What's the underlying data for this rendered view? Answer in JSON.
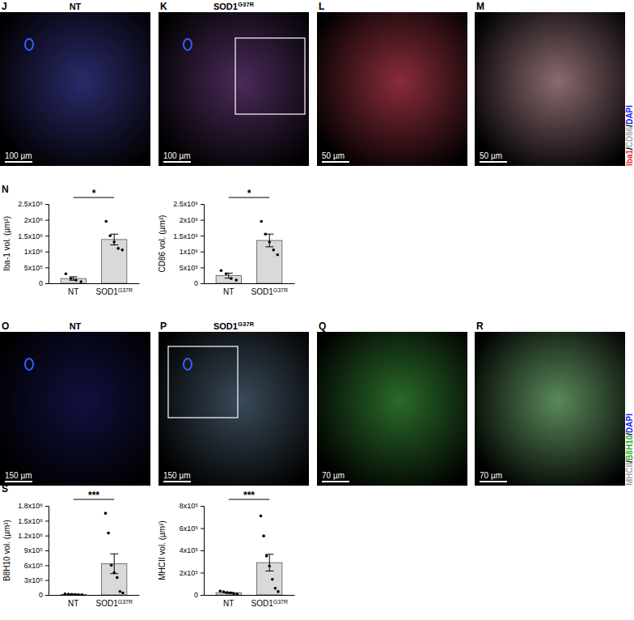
{
  "image_rows": [
    {
      "panels": [
        {
          "letter": "J",
          "title": "NT",
          "scale_bar": "100 µm"
        },
        {
          "letter": "K",
          "title": "SOD1G37R",
          "scale_bar": "100 µm"
        },
        {
          "letter": "L",
          "scale_bar": "50 µm"
        },
        {
          "letter": "M",
          "scale_bar": "50 µm"
        }
      ],
      "channels": [
        {
          "text": "Iba1",
          "color": "#e8302a"
        },
        {
          "text": "/",
          "color": "#000000"
        },
        {
          "text": "CD86",
          "color": "#a6a6a6"
        },
        {
          "text": "/",
          "color": "#000000"
        },
        {
          "text": "DAPI",
          "color": "#1a1aff"
        }
      ]
    },
    {
      "panels": [
        {
          "letter": "O",
          "title": "NT",
          "scale_bar": "150 µm"
        },
        {
          "letter": "P",
          "title": "SOD1G37R",
          "scale_bar": "150 µm"
        },
        {
          "letter": "Q",
          "scale_bar": "70 µm"
        },
        {
          "letter": "R",
          "scale_bar": "70 µm"
        }
      ],
      "channels": [
        {
          "text": "MHCII",
          "color": "#a6a6a6"
        },
        {
          "text": "/",
          "color": "#000000"
        },
        {
          "text": "B8H10",
          "color": "#22b022"
        },
        {
          "text": "/",
          "color": "#000000"
        },
        {
          "text": "DAPI",
          "color": "#1a1aff"
        }
      ]
    }
  ],
  "chart_groups": [
    {
      "letter": "N"
    },
    {
      "letter": "S"
    }
  ],
  "chart_data": [
    {
      "type": "bar",
      "ylabel": "Iba-1 vol. (µm³)",
      "categories": [
        "NT",
        "SOD1G37R"
      ],
      "values": [
        150000,
        1380000
      ],
      "errors": [
        55000,
        170000
      ],
      "points": [
        [
          300000,
          150000,
          100000,
          50000
        ],
        [
          1950000,
          1500000,
          1300000,
          1100000,
          1050000
        ]
      ],
      "color": "#d9d9d9",
      "annotation": "*",
      "ylim": [
        0,
        2500000
      ],
      "yticks": [
        0,
        {
          "value": 500000,
          "label": "5x10⁵"
        },
        {
          "value": 1000000,
          "label": "1x10⁶"
        },
        {
          "value": 1500000,
          "label": "1.5x10⁶"
        },
        {
          "value": 2000000,
          "label": "2x10⁶"
        },
        {
          "value": 2500000,
          "label": "2.5x10⁶"
        }
      ]
    },
    {
      "type": "bar",
      "ylabel": "CD86 vol. (µm³)",
      "categories": [
        "NT",
        "SOD1G37R"
      ],
      "values": [
        240000,
        1350000
      ],
      "errors": [
        80000,
        200000
      ],
      "points": [
        [
          400000,
          300000,
          150000,
          100000
        ],
        [
          1950000,
          1550000,
          1300000,
          1050000,
          900000
        ]
      ],
      "color": "#d9d9d9",
      "annotation": "*",
      "ylim": [
        0,
        2500000
      ],
      "yticks": [
        0,
        {
          "value": 500000,
          "label": "5x10⁵"
        },
        {
          "value": 1000000,
          "label": "1x10⁶"
        },
        {
          "value": 1500000,
          "label": "1.5x10⁶"
        },
        {
          "value": 2000000,
          "label": "2x10⁶"
        },
        {
          "value": 2500000,
          "label": "2.5x10⁶"
        }
      ]
    },
    {
      "type": "bar",
      "ylabel": "B8H10 vol. (µm³)",
      "categories": [
        "NT",
        "SOD1G37R"
      ],
      "values": [
        10000,
        630000
      ],
      "errors": [
        4000,
        200000
      ],
      "points": [
        [
          20000,
          15000,
          10000,
          8000,
          5000,
          3000
        ],
        [
          1650000,
          1250000,
          600000,
          450000,
          350000,
          70000,
          40000
        ]
      ],
      "color": "#d9d9d9",
      "annotation": "***",
      "ylim": [
        0,
        1800000
      ],
      "yticks": [
        0,
        {
          "value": 300000,
          "label": "3x10⁵"
        },
        {
          "value": 600000,
          "label": "6x10⁵"
        },
        {
          "value": 900000,
          "label": "9x10⁵"
        },
        {
          "value": 1200000,
          "label": "1.2x10⁶"
        },
        {
          "value": 1500000,
          "label": "1.5x10⁶"
        },
        {
          "value": 1800000,
          "label": "1.8x10⁶"
        }
      ]
    },
    {
      "type": "bar",
      "ylabel": "MHCII vol. (µm³)",
      "categories": [
        "NT",
        "SOD1G37R"
      ],
      "values": [
        20000,
        290000
      ],
      "errors": [
        5000,
        75000
      ],
      "points": [
        [
          35000,
          28000,
          22000,
          18000,
          12000,
          8000
        ],
        [
          710000,
          530000,
          350000,
          260000,
          140000,
          60000,
          30000
        ]
      ],
      "color": "#d9d9d9",
      "annotation": "***",
      "ylim": [
        0,
        800000
      ],
      "yticks": [
        0,
        {
          "value": 200000,
          "label": "2x10⁵"
        },
        {
          "value": 400000,
          "label": "4x10⁵"
        },
        {
          "value": 600000,
          "label": "6x10⁵"
        },
        {
          "value": 800000,
          "label": "8x10⁵"
        }
      ]
    }
  ]
}
